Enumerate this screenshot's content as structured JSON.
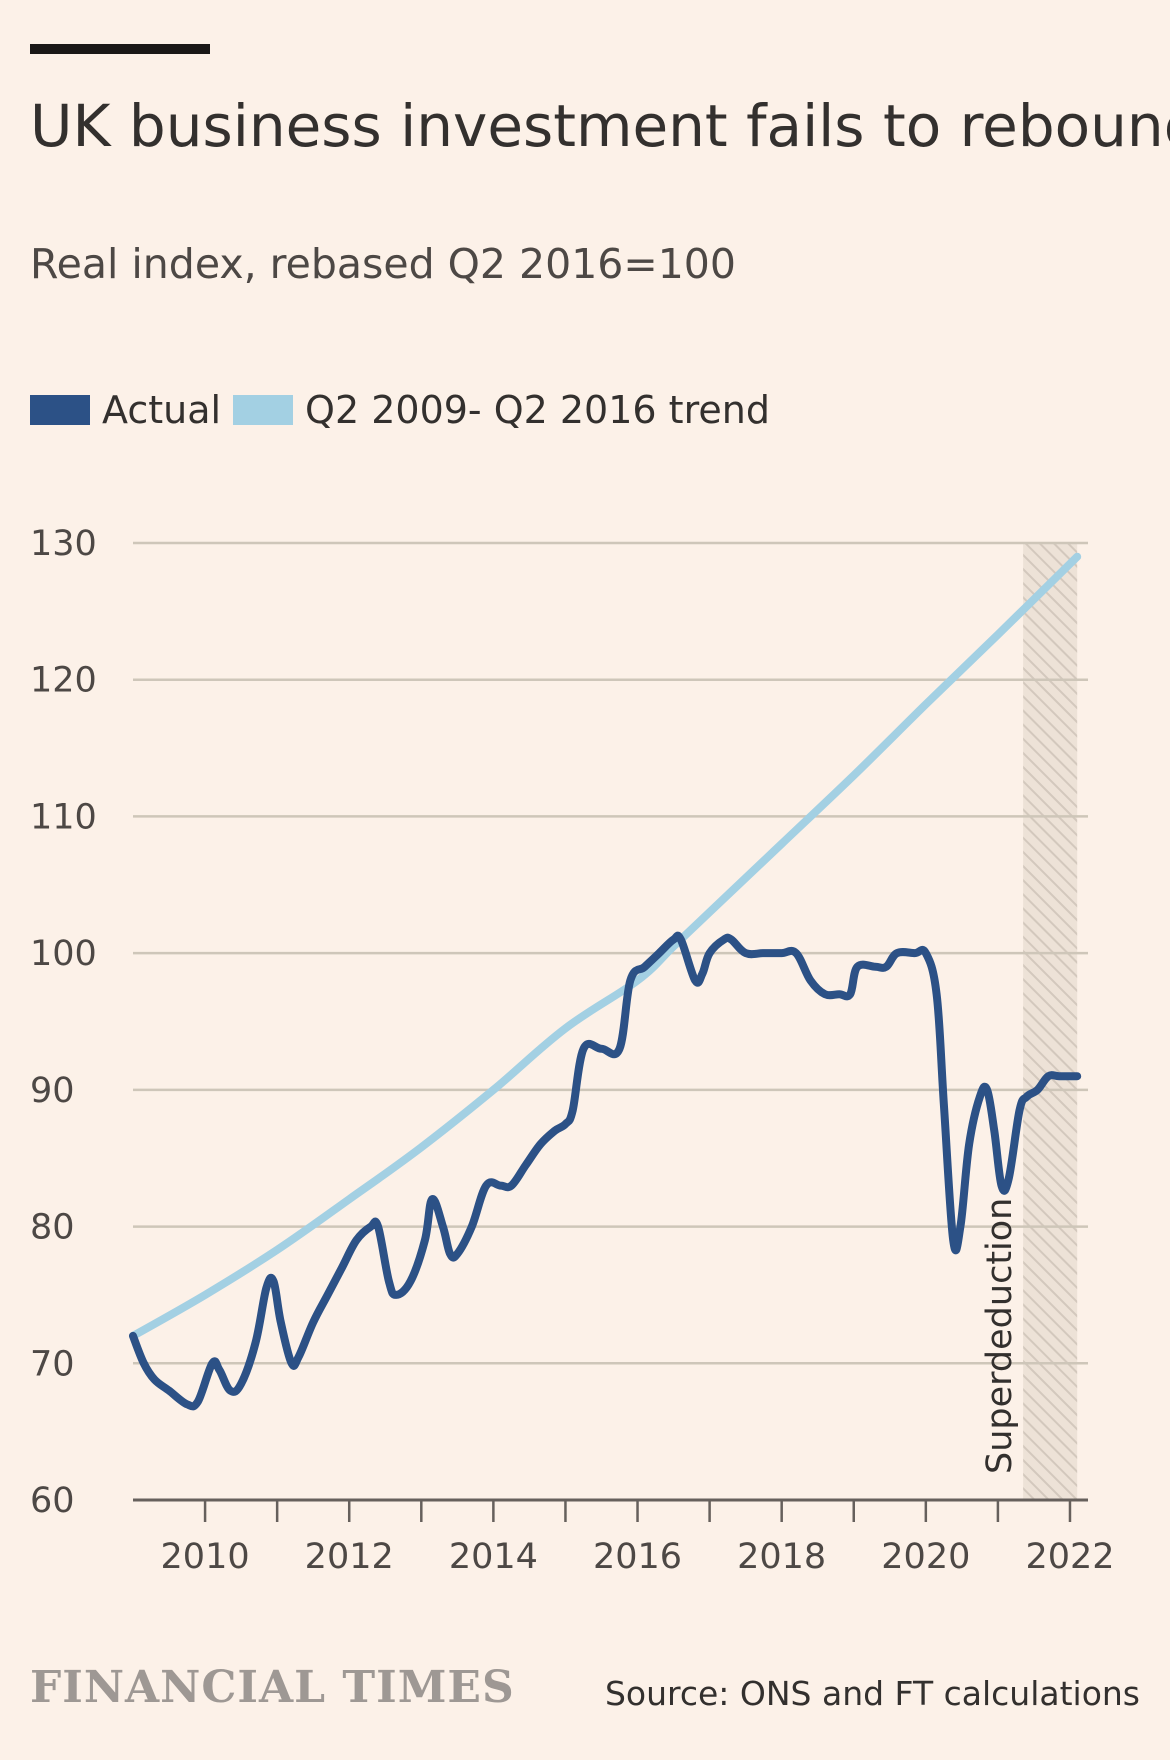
{
  "header": {
    "title": "UK business investment fails to rebound",
    "subtitle": "Real index, rebased Q2 2016=100"
  },
  "legend": {
    "items": [
      {
        "label": "Actual",
        "color": "#2c5186"
      },
      {
        "label": "Q2 2009- Q2 2016 trend",
        "color": "#a3d0e3"
      }
    ]
  },
  "footer": {
    "brand": "FINANCIAL TIMES",
    "source": "Source: ONS and FT calculations"
  },
  "colors": {
    "background": "#fcf1e8",
    "actual": "#2c5186",
    "trend": "#a3d0e3",
    "grid": "#cec6b9",
    "axis": "#66605c"
  },
  "chart_data": {
    "type": "line",
    "title": "UK business investment fails to rebound",
    "subtitle": "Real index, rebased Q2 2016=100",
    "xlabel": "",
    "ylabel": "",
    "ylim": [
      60,
      130
    ],
    "xlim": [
      2009.0,
      2022.25
    ],
    "y_ticks": [
      "60",
      "70",
      "80",
      "90",
      "100",
      "110",
      "120",
      "130"
    ],
    "x_ticks": [
      "2010",
      "2012",
      "2014",
      "2016",
      "2018",
      "2020",
      "2022"
    ],
    "grid": true,
    "legend_position": "top-left",
    "series": [
      {
        "name": "Actual",
        "color": "#2c5186",
        "points": [
          [
            2009.0,
            72
          ],
          [
            2009.15,
            70
          ],
          [
            2009.3,
            68.8
          ],
          [
            2009.5,
            68
          ],
          [
            2009.75,
            67
          ],
          [
            2009.9,
            67.2
          ],
          [
            2010.1,
            70
          ],
          [
            2010.2,
            69.5
          ],
          [
            2010.35,
            68
          ],
          [
            2010.5,
            68.5
          ],
          [
            2010.7,
            71.5
          ],
          [
            2010.85,
            75.5
          ],
          [
            2010.95,
            76
          ],
          [
            2011.05,
            73
          ],
          [
            2011.2,
            70
          ],
          [
            2011.3,
            70.5
          ],
          [
            2011.5,
            73
          ],
          [
            2011.7,
            75
          ],
          [
            2011.9,
            77
          ],
          [
            2012.1,
            79
          ],
          [
            2012.3,
            80
          ],
          [
            2012.4,
            80
          ],
          [
            2012.55,
            76
          ],
          [
            2012.65,
            75
          ],
          [
            2012.85,
            76
          ],
          [
            2013.05,
            79
          ],
          [
            2013.15,
            82
          ],
          [
            2013.3,
            80
          ],
          [
            2013.4,
            78
          ],
          [
            2013.5,
            78
          ],
          [
            2013.7,
            80
          ],
          [
            2013.9,
            83
          ],
          [
            2014.1,
            83
          ],
          [
            2014.25,
            83
          ],
          [
            2014.45,
            84.5
          ],
          [
            2014.65,
            86
          ],
          [
            2014.85,
            87
          ],
          [
            2015.0,
            87.5
          ],
          [
            2015.1,
            88.5
          ],
          [
            2015.25,
            93
          ],
          [
            2015.5,
            93
          ],
          [
            2015.75,
            93
          ],
          [
            2015.9,
            98
          ],
          [
            2016.1,
            99
          ],
          [
            2016.3,
            100
          ],
          [
            2016.5,
            101
          ],
          [
            2016.6,
            101
          ],
          [
            2016.8,
            98
          ],
          [
            2016.9,
            98.5
          ],
          [
            2017.0,
            100
          ],
          [
            2017.2,
            101
          ],
          [
            2017.3,
            101
          ],
          [
            2017.5,
            100
          ],
          [
            2017.75,
            100
          ],
          [
            2018.0,
            100
          ],
          [
            2018.2,
            100
          ],
          [
            2018.4,
            98
          ],
          [
            2018.6,
            97
          ],
          [
            2018.8,
            97
          ],
          [
            2018.95,
            97
          ],
          [
            2019.05,
            99
          ],
          [
            2019.3,
            99
          ],
          [
            2019.45,
            99
          ],
          [
            2019.6,
            100
          ],
          [
            2019.85,
            100
          ],
          [
            2020.0,
            100
          ],
          [
            2020.15,
            97
          ],
          [
            2020.25,
            89
          ],
          [
            2020.38,
            79
          ],
          [
            2020.48,
            80
          ],
          [
            2020.6,
            86
          ],
          [
            2020.75,
            89.5
          ],
          [
            2020.85,
            90
          ],
          [
            2020.95,
            87
          ],
          [
            2021.05,
            83
          ],
          [
            2021.15,
            83.5
          ],
          [
            2021.3,
            88.5
          ],
          [
            2021.4,
            89.5
          ],
          [
            2021.55,
            90
          ],
          [
            2021.7,
            91
          ],
          [
            2021.85,
            91
          ],
          [
            2022.1,
            91
          ]
        ]
      },
      {
        "name": "Q2 2009- Q2 2016 trend",
        "color": "#a3d0e3",
        "points": [
          [
            2009.0,
            72
          ],
          [
            2010.0,
            75
          ],
          [
            2011.0,
            78.3
          ],
          [
            2012.0,
            82
          ],
          [
            2013.0,
            85.8
          ],
          [
            2014.0,
            90
          ],
          [
            2015.0,
            94.5
          ],
          [
            2016.0,
            98
          ],
          [
            2016.5,
            100.5
          ],
          [
            2017.0,
            103
          ],
          [
            2018.0,
            108
          ],
          [
            2019.0,
            113
          ],
          [
            2020.0,
            118.2
          ],
          [
            2021.0,
            123.3
          ],
          [
            2022.1,
            129
          ]
        ]
      }
    ],
    "annotations": [
      {
        "text": "Superdeduction",
        "x": 2021.35,
        "orientation": "vertical",
        "shaded_from": 2021.35,
        "shaded_to": 2022.1
      }
    ]
  }
}
